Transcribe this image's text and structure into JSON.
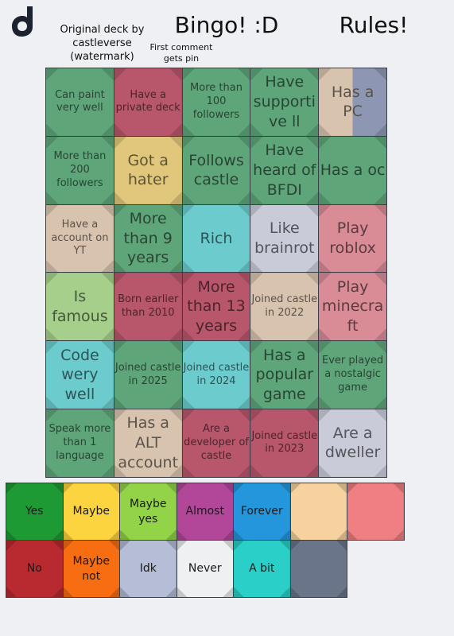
{
  "header": {
    "deck_credit": "Original deck by castleverse (watermark)",
    "pin_note": "First comment gets pin",
    "title": "Bingo! :D",
    "rules": "Rules!"
  },
  "board": {
    "cells": [
      [
        {
          "text": "Can paint very well",
          "color": "#5fa57a"
        },
        {
          "text": "Have a private deck",
          "color": "#b8566b"
        },
        {
          "text": "More than 100 followers",
          "color": "#5fa57a"
        },
        {
          "text": "Have supportive ll",
          "color": "#5fa57a"
        },
        {
          "text": "Has a PC",
          "colors": [
            "#d8c3ae",
            "#8d97b3"
          ]
        }
      ],
      [
        {
          "text": "More than 200 followers",
          "color": "#5fa57a"
        },
        {
          "text": "Got a hater",
          "color": "#e0c77b"
        },
        {
          "text": "Follows castle",
          "color": "#5fa57a"
        },
        {
          "text": "Have heard of BFDI",
          "color": "#5fa57a"
        },
        {
          "text": "Has a oc",
          "color": "#5fa57a"
        }
      ],
      [
        {
          "text": "Have a account on YT",
          "color": "#d8c3ae"
        },
        {
          "text": "More than 9 years",
          "color": "#5fa57a"
        },
        {
          "text": "Rich",
          "color": "#6ccbcc"
        },
        {
          "text": "Like brainrot",
          "color": "#c9cbd9"
        },
        {
          "text": "Play roblox",
          "color": "#d98c96"
        }
      ],
      [
        {
          "text": "Is famous",
          "color": "#a6cf8b"
        },
        {
          "text": "Born earlier than 2010",
          "color": "#b8566b"
        },
        {
          "text": "More than 13 years",
          "color": "#b8566b"
        },
        {
          "text": "Joined castle in 2022",
          "color": "#d8c3ae"
        },
        {
          "text": "Play minecraft",
          "color": "#d98c96"
        }
      ],
      [
        {
          "text": "Code wery well",
          "color": "#6ccbcc"
        },
        {
          "text": "Joined castle in 2025",
          "color": "#5fa57a"
        },
        {
          "text": "Joined castle in 2024",
          "color": "#6ccbcc"
        },
        {
          "text": "Has a popular game",
          "color": "#5fa57a"
        },
        {
          "text": "Ever played a nostalgic game",
          "color": "#5fa57a"
        }
      ],
      [
        {
          "text": "Speak more than 1 language",
          "color": "#5fa57a"
        },
        {
          "text": "Has a ALT account",
          "color": "#d8c3ae"
        },
        {
          "text": "Are a developer of castle",
          "color": "#b8566b"
        },
        {
          "text": "Joined castle in 2023",
          "color": "#b8566b"
        },
        {
          "text": "Are a dweller",
          "color": "#c9cbd9"
        }
      ]
    ]
  },
  "legend": {
    "items": [
      {
        "label": "Yes",
        "color": "#1e9a35"
      },
      {
        "label": "Maybe",
        "color": "#fcd440"
      },
      {
        "label": "Maybe yes",
        "color": "#92d348"
      },
      {
        "label": "Almost",
        "color": "#b2479a"
      },
      {
        "label": "Forever",
        "color": "#2496dc"
      },
      {
        "color": "#f5d29e"
      },
      {
        "color": "#ef7f83"
      },
      {
        "label": "No",
        "color": "#b82a30"
      },
      {
        "label": "Maybe not",
        "color": "#f76d12"
      },
      {
        "label": "Idk",
        "color": "#b6bdd6"
      },
      {
        "label": "Never",
        "color": "#eef0f2"
      },
      {
        "label": "A bit",
        "color": "#2ad0c7"
      },
      {
        "color": "#6a7589"
      }
    ]
  }
}
